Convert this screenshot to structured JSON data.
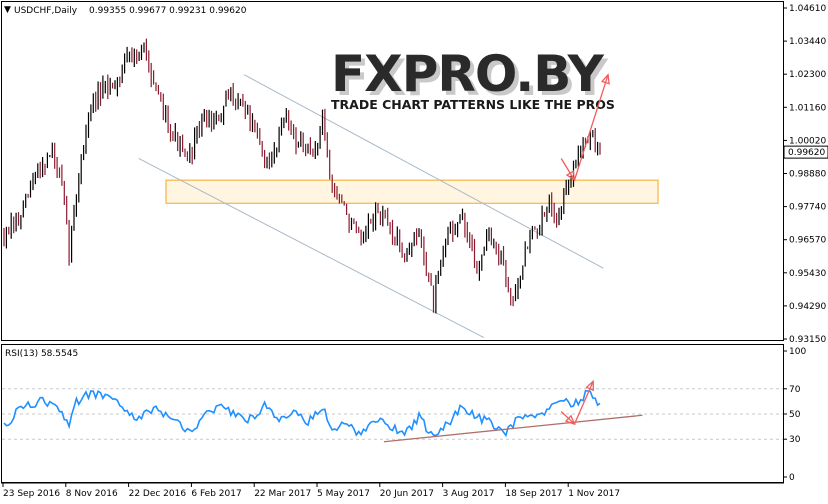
{
  "header": {
    "symbol_text": "USDCHF,Daily",
    "ohlc_text": "0.99355 0.99677 0.99231 0.99620"
  },
  "watermark": {
    "logo_text": "FXPRO.BY",
    "tagline": "TRADE CHART PATTERNS LIKE THE PROS"
  },
  "rsi_header": "RSI(13) 58.5545",
  "colors": {
    "bull": "#000000",
    "bear": "#8b1a2e",
    "rsi": "#1e90ff",
    "channel": "#a9b9c8",
    "zone": "#f5a623",
    "arrow": "#f25c5c",
    "trend": "#b0706a",
    "grid": "#c8c8c8"
  },
  "chart_data": [
    {
      "type": "candlestick",
      "title": "USDCHF,Daily",
      "ylim": [
        0.9315,
        1.0461
      ],
      "y_ticks": [
        "1.04610",
        "1.03440",
        "1.02300",
        "1.01160",
        "1.00020",
        "0.98880",
        "0.97740",
        "0.96570",
        "0.95430",
        "0.94290",
        "0.93150"
      ],
      "last_price": "0.99620",
      "x_ticks": [
        "23 Sep 2016",
        "8 Nov 2016",
        "22 Dec 2016",
        "6 Feb 2017",
        "22 Mar 2017",
        "5 May 2017",
        "20 Jun 2017",
        "3 Aug 2017",
        "18 Sep 2017",
        "1 Nov 2017"
      ],
      "grid": false,
      "anchors": [
        [
          0,
          0.967
        ],
        [
          6,
          0.972
        ],
        [
          14,
          0.99
        ],
        [
          20,
          0.996
        ],
        [
          24,
          0.984
        ],
        [
          27,
          0.962
        ],
        [
          32,
          0.995
        ],
        [
          36,
          1.012
        ],
        [
          42,
          1.018
        ],
        [
          48,
          1.022
        ],
        [
          51,
          1.032
        ],
        [
          55,
          1.028
        ],
        [
          59,
          1.032
        ],
        [
          63,
          1.016
        ],
        [
          70,
          1.003
        ],
        [
          76,
          0.992
        ],
        [
          82,
          1.008
        ],
        [
          88,
          1.006
        ],
        [
          94,
          1.016
        ],
        [
          100,
          1.012
        ],
        [
          106,
          0.998
        ],
        [
          110,
          0.99
        ],
        [
          116,
          1.01
        ],
        [
          122,
          0.999
        ],
        [
          128,
          0.994
        ],
        [
          132,
          1.008
        ],
        [
          136,
          0.984
        ],
        [
          142,
          0.975
        ],
        [
          148,
          0.964
        ],
        [
          154,
          0.976
        ],
        [
          160,
          0.97
        ],
        [
          166,
          0.961
        ],
        [
          172,
          0.968
        ],
        [
          178,
          0.944
        ],
        [
          184,
          0.969
        ],
        [
          190,
          0.973
        ],
        [
          196,
          0.955
        ],
        [
          200,
          0.968
        ],
        [
          206,
          0.958
        ],
        [
          210,
          0.945
        ],
        [
          214,
          0.955
        ],
        [
          218,
          0.968
        ],
        [
          222,
          0.97
        ],
        [
          226,
          0.978
        ],
        [
          230,
          0.975
        ],
        [
          236,
          0.99
        ],
        [
          240,
          1.002
        ],
        [
          244,
          1.001
        ],
        [
          247,
          0.996
        ]
      ],
      "num_candles": 248,
      "seed": 7,
      "annotations": {
        "channel_upper": [
          [
            0.31,
            1.023
          ],
          [
            0.77,
            0.956
          ]
        ],
        "channel_lower": [
          [
            0.175,
            0.994
          ],
          [
            0.617,
            0.932
          ]
        ],
        "support_zone": {
          "x": [
            0.21,
            0.84
          ],
          "y": [
            0.9785,
            0.9865
          ]
        },
        "arrow_down": [
          [
            0.716,
            0.994
          ],
          [
            0.733,
            0.9865
          ]
        ],
        "arrow_up": [
          [
            0.733,
            0.9865
          ],
          [
            0.776,
            1.023
          ]
        ]
      }
    },
    {
      "type": "line",
      "title": "RSI(13) 58.5545",
      "name": "RSI(13)",
      "ylim": [
        0,
        100
      ],
      "y_ticks": [
        "100",
        "70",
        "50",
        "30",
        "0"
      ],
      "levels": [
        30,
        50,
        70
      ],
      "last_value": 58.5545,
      "anchors": [
        [
          0,
          40
        ],
        [
          8,
          57
        ],
        [
          16,
          60
        ],
        [
          22,
          54
        ],
        [
          27,
          40
        ],
        [
          30,
          60
        ],
        [
          36,
          67
        ],
        [
          42,
          64
        ],
        [
          48,
          58
        ],
        [
          55,
          46
        ],
        [
          62,
          55
        ],
        [
          70,
          45
        ],
        [
          78,
          36
        ],
        [
          84,
          52
        ],
        [
          90,
          56
        ],
        [
          96,
          48
        ],
        [
          102,
          46
        ],
        [
          108,
          56
        ],
        [
          114,
          44
        ],
        [
          120,
          54
        ],
        [
          126,
          44
        ],
        [
          132,
          56
        ],
        [
          136,
          36
        ],
        [
          142,
          42
        ],
        [
          148,
          33
        ],
        [
          154,
          46
        ],
        [
          160,
          40
        ],
        [
          166,
          34
        ],
        [
          172,
          48
        ],
        [
          178,
          31
        ],
        [
          184,
          42
        ],
        [
          190,
          56
        ],
        [
          196,
          48
        ],
        [
          202,
          43
        ],
        [
          208,
          35
        ],
        [
          214,
          50
        ],
        [
          220,
          48
        ],
        [
          226,
          54
        ],
        [
          232,
          60
        ],
        [
          238,
          58
        ],
        [
          242,
          68
        ],
        [
          244,
          61
        ],
        [
          247,
          58.55
        ]
      ],
      "annotations": {
        "trendline": [
          [
            0.489,
            28
          ],
          [
            0.82,
            49
          ]
        ],
        "arrow_down": [
          [
            0.716,
            52
          ],
          [
            0.733,
            42
          ]
        ],
        "arrow_up": [
          [
            0.733,
            42
          ],
          [
            0.757,
            76
          ]
        ]
      }
    }
  ]
}
